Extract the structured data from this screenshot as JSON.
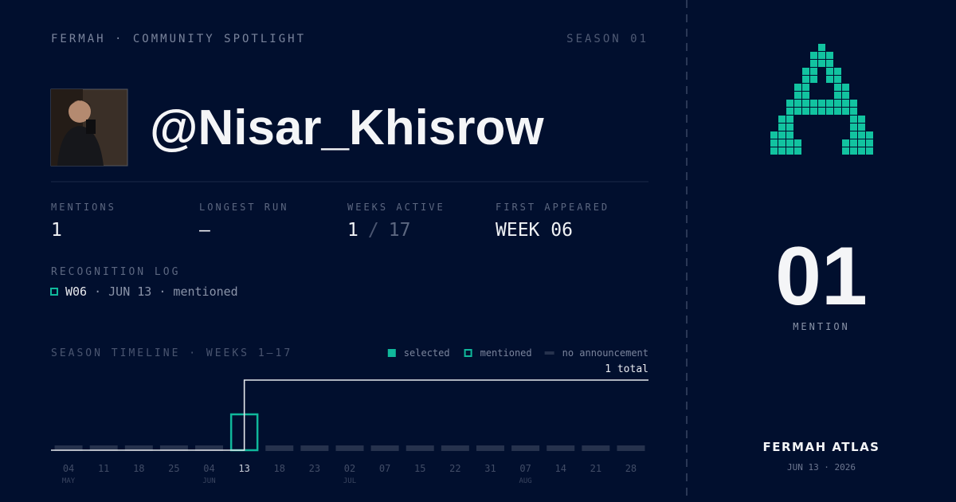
{
  "header": {
    "brand": "FERMAH · COMMUNITY SPOTLIGHT",
    "season": "SEASON 01"
  },
  "profile": {
    "handle": "@Nisar_Khisrow"
  },
  "stats": [
    {
      "label": "MENTIONS",
      "value": "1"
    },
    {
      "label": "LONGEST RUN",
      "value": "—"
    },
    {
      "label": "WEEKS ACTIVE",
      "value": "1",
      "separator": "/",
      "total": "17"
    },
    {
      "label": "FIRST APPEARED",
      "value": "WEEK 06"
    }
  ],
  "log": {
    "title": "RECOGNITION LOG",
    "entries": [
      {
        "week": "W06",
        "detail": "· JUN 13 · mentioned"
      }
    ]
  },
  "timeline": {
    "title": "SEASON TIMELINE · WEEKS 1–17",
    "legend": [
      {
        "name": "selected",
        "style": "filled",
        "color": "#10b89b"
      },
      {
        "name": "mentioned",
        "style": "outline",
        "color": "#10b89b"
      },
      {
        "name": "no announcement",
        "style": "dash",
        "color": "#26324d"
      }
    ],
    "total_label": "1 total",
    "weeks": [
      {
        "day": "04",
        "month": "MAY",
        "mentions": 0,
        "status": "none"
      },
      {
        "day": "11",
        "month": null,
        "mentions": 0,
        "status": "none"
      },
      {
        "day": "18",
        "month": null,
        "mentions": 0,
        "status": "none"
      },
      {
        "day": "25",
        "month": null,
        "mentions": 0,
        "status": "none"
      },
      {
        "day": "04",
        "month": "JUN",
        "mentions": 0,
        "status": "none"
      },
      {
        "day": "13",
        "month": null,
        "mentions": 1,
        "status": "mentioned"
      },
      {
        "day": "18",
        "month": null,
        "mentions": 0,
        "status": "none"
      },
      {
        "day": "23",
        "month": null,
        "mentions": 0,
        "status": "none"
      },
      {
        "day": "02",
        "month": "JUL",
        "mentions": 0,
        "status": "none"
      },
      {
        "day": "07",
        "month": null,
        "mentions": 0,
        "status": "none"
      },
      {
        "day": "15",
        "month": null,
        "mentions": 0,
        "status": "none"
      },
      {
        "day": "22",
        "month": null,
        "mentions": 0,
        "status": "none"
      },
      {
        "day": "31",
        "month": null,
        "mentions": 0,
        "status": "none"
      },
      {
        "day": "07",
        "month": "AUG",
        "mentions": 0,
        "status": "none"
      },
      {
        "day": "14",
        "month": null,
        "mentions": 0,
        "status": "none"
      },
      {
        "day": "21",
        "month": null,
        "mentions": 0,
        "status": "none"
      },
      {
        "day": "28",
        "month": null,
        "mentions": 0,
        "status": "none"
      }
    ]
  },
  "sidebar": {
    "count": "01",
    "count_label": "MENTION",
    "brand": "FERMAH ATLAS",
    "date": "JUN 13 · 2026"
  }
}
